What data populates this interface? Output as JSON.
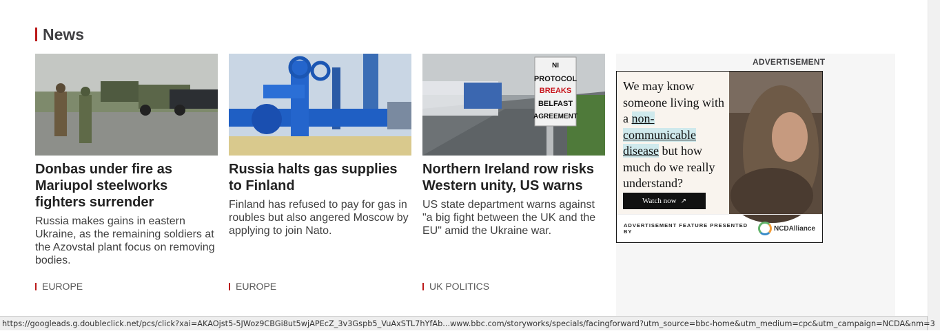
{
  "section": {
    "title": "News"
  },
  "articles": [
    {
      "headline": "Donbas under fire as Mariupol steelworks fighters surrender",
      "summary": "Russia makes gains in eastern Ukraine, as the remaining soldiers at the Azovstal plant focus on removing bodies.",
      "tag": "EUROPE"
    },
    {
      "headline": "Russia halts gas supplies to Finland",
      "summary": "Finland has refused to pay for gas in roubles but also angered Moscow by applying to join Nato.",
      "tag": "EUROPE"
    },
    {
      "headline": "Northern Ireland row risks Western unity, US warns",
      "summary": "US state department warns against \"a big fight between the UK and the EU\" amid the Ukraine war.",
      "tag": "UK POLITICS",
      "sign_lines": [
        "NI",
        "PROTOCOL",
        "BREAKS",
        "BELFAST",
        "AGREEMENT"
      ]
    }
  ],
  "advertisement": {
    "label": "ADVERTISEMENT",
    "copy_start": "We may know someone living with a ",
    "copy_highlight": "non-communicable disease",
    "copy_end": " but how much do we really understand?",
    "button_label": "Watch now",
    "button_icon": "external-link-icon",
    "footer_text": "ADVERTISEMENT FEATURE PRESENTED BY",
    "sponsor_logo_text": "NCDAlliance"
  },
  "status_bar": {
    "url": "https://googleads.g.doubleclick.net/pcs/click?xai=AKAOjst5-5JWoz9CBGi8ut5wjAPEcZ_3v3Gspb5_VuAxSTL7hYfAb...www.bbc.com/storyworks/specials/facingforward?utm_source=bbc-home&utm_medium=cpc&utm_campaign=NCDA&nm=3"
  },
  "colors": {
    "accent": "#bb1919",
    "headline": "#222222",
    "body": "#404040"
  }
}
